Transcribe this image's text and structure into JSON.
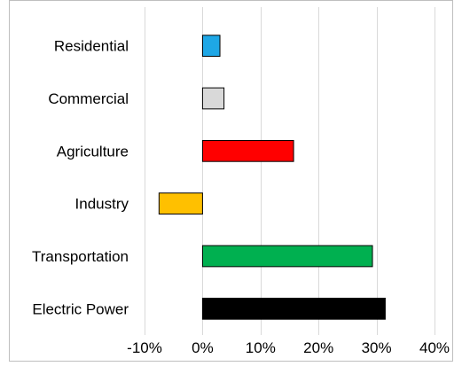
{
  "chart_data": {
    "type": "bar",
    "orientation": "horizontal",
    "categories": [
      "Residential",
      "Commercial",
      "Agriculture",
      "Industry",
      "Transportation",
      "Electric Power"
    ],
    "values": [
      3,
      3.7,
      15.7,
      -7.5,
      29.3,
      31.5
    ],
    "colors": [
      "#1ea7e6",
      "#d9d9d9",
      "#ff0000",
      "#ffc000",
      "#00b050",
      "#000000"
    ],
    "xlim": [
      -10,
      40
    ],
    "xticks": [
      -10,
      0,
      10,
      20,
      30,
      40
    ],
    "xtick_labels": [
      "-10%",
      "0%",
      "10%",
      "20%",
      "30%",
      "40%"
    ],
    "grid": "vertical",
    "legend": "none",
    "title": "",
    "xlabel": "",
    "ylabel": ""
  }
}
